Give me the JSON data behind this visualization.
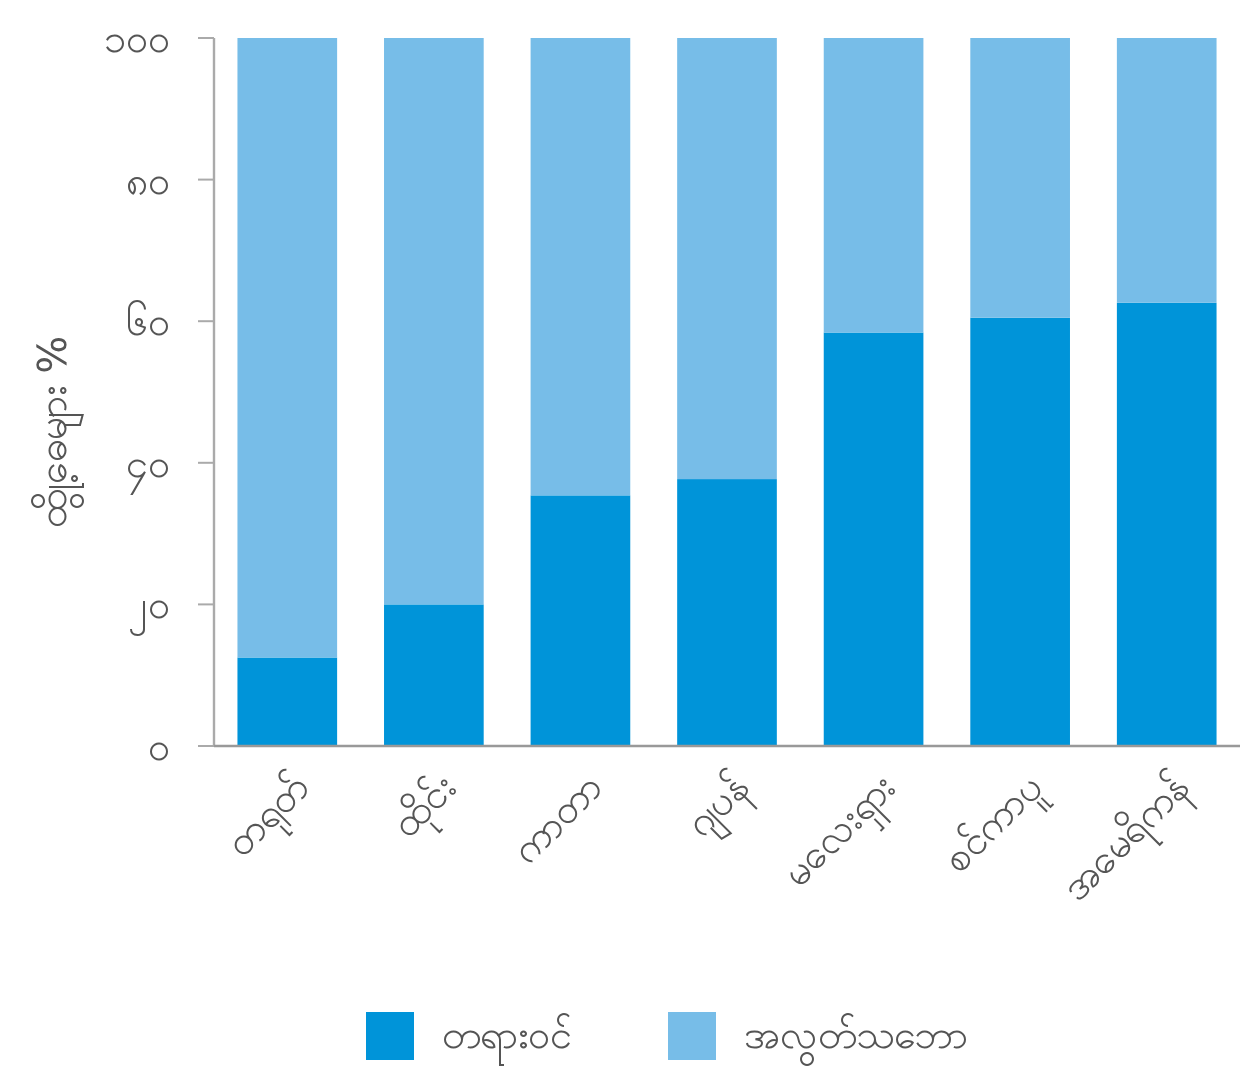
{
  "chart_data": {
    "type": "bar",
    "stacked": true,
    "ylabel": "ထွို့ဓေများ %",
    "categories": [
      "တရုတ်",
      "ထိုင်း",
      "ကာတာ",
      "ဂျပန်",
      "မလေးရှား",
      "စင်ကာပူ",
      "အမေရိကန်"
    ],
    "series": [
      {
        "name": "တရားဝင်",
        "color": "#0094d9",
        "values": [
          12.5,
          20,
          35.4,
          37.7,
          58.4,
          60.5,
          62.6
        ]
      },
      {
        "name": "အလွတ်သဘော",
        "color": "#77bde8",
        "values": [
          87.5,
          80,
          64.6,
          62.3,
          41.6,
          39.5,
          37.4
        ]
      }
    ],
    "ylim": [
      0,
      100
    ],
    "yticks": [
      {
        "value": 0,
        "label": "၀"
      },
      {
        "value": 20,
        "label": "၂၀"
      },
      {
        "value": 40,
        "label": "၄၀"
      },
      {
        "value": 60,
        "label": "၆၀"
      },
      {
        "value": 80,
        "label": "၈၀"
      },
      {
        "value": 100,
        "label": "၁၀၀"
      }
    ],
    "grid": false,
    "legend": "bottom"
  }
}
